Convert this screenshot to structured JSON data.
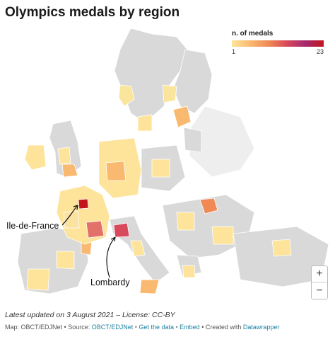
{
  "title": "Olympics medals by region",
  "legend": {
    "title": "n. of medals",
    "min_label": "1",
    "max_label": "23",
    "colors": [
      "#fde49a",
      "#f9b971",
      "#f08a55",
      "#d8495c",
      "#a52a6e",
      "#c4151c"
    ]
  },
  "annotations": {
    "ile_de_france": "Ile-de-France",
    "lombardy": "Lombardy"
  },
  "highlighted_regions": [
    {
      "name": "Ile-de-France",
      "medals": 23,
      "color": "#c4151c"
    },
    {
      "name": "Lombardy",
      "medals": 19,
      "color": "#d8495c"
    }
  ],
  "zoom": {
    "plus_icon": "plus-icon",
    "minus_icon": "minus-icon"
  },
  "footer": {
    "updated": "Latest updated on 3 August 2021 – License: CC-BY",
    "map_by": "Map: OBCT/EDJNet",
    "source_prefix": "• Source:",
    "source_link": "OBCT/EDJNet",
    "get_data": "Get the data",
    "embed": "Embed",
    "created_with": "• Created with",
    "datawrapper": "Datawrapper",
    "bullet": "•"
  },
  "colors": {
    "no_data": "#d9d9d9",
    "not_included": "#eeeeee",
    "border": "#ffffff",
    "link": "#1d81a2"
  }
}
